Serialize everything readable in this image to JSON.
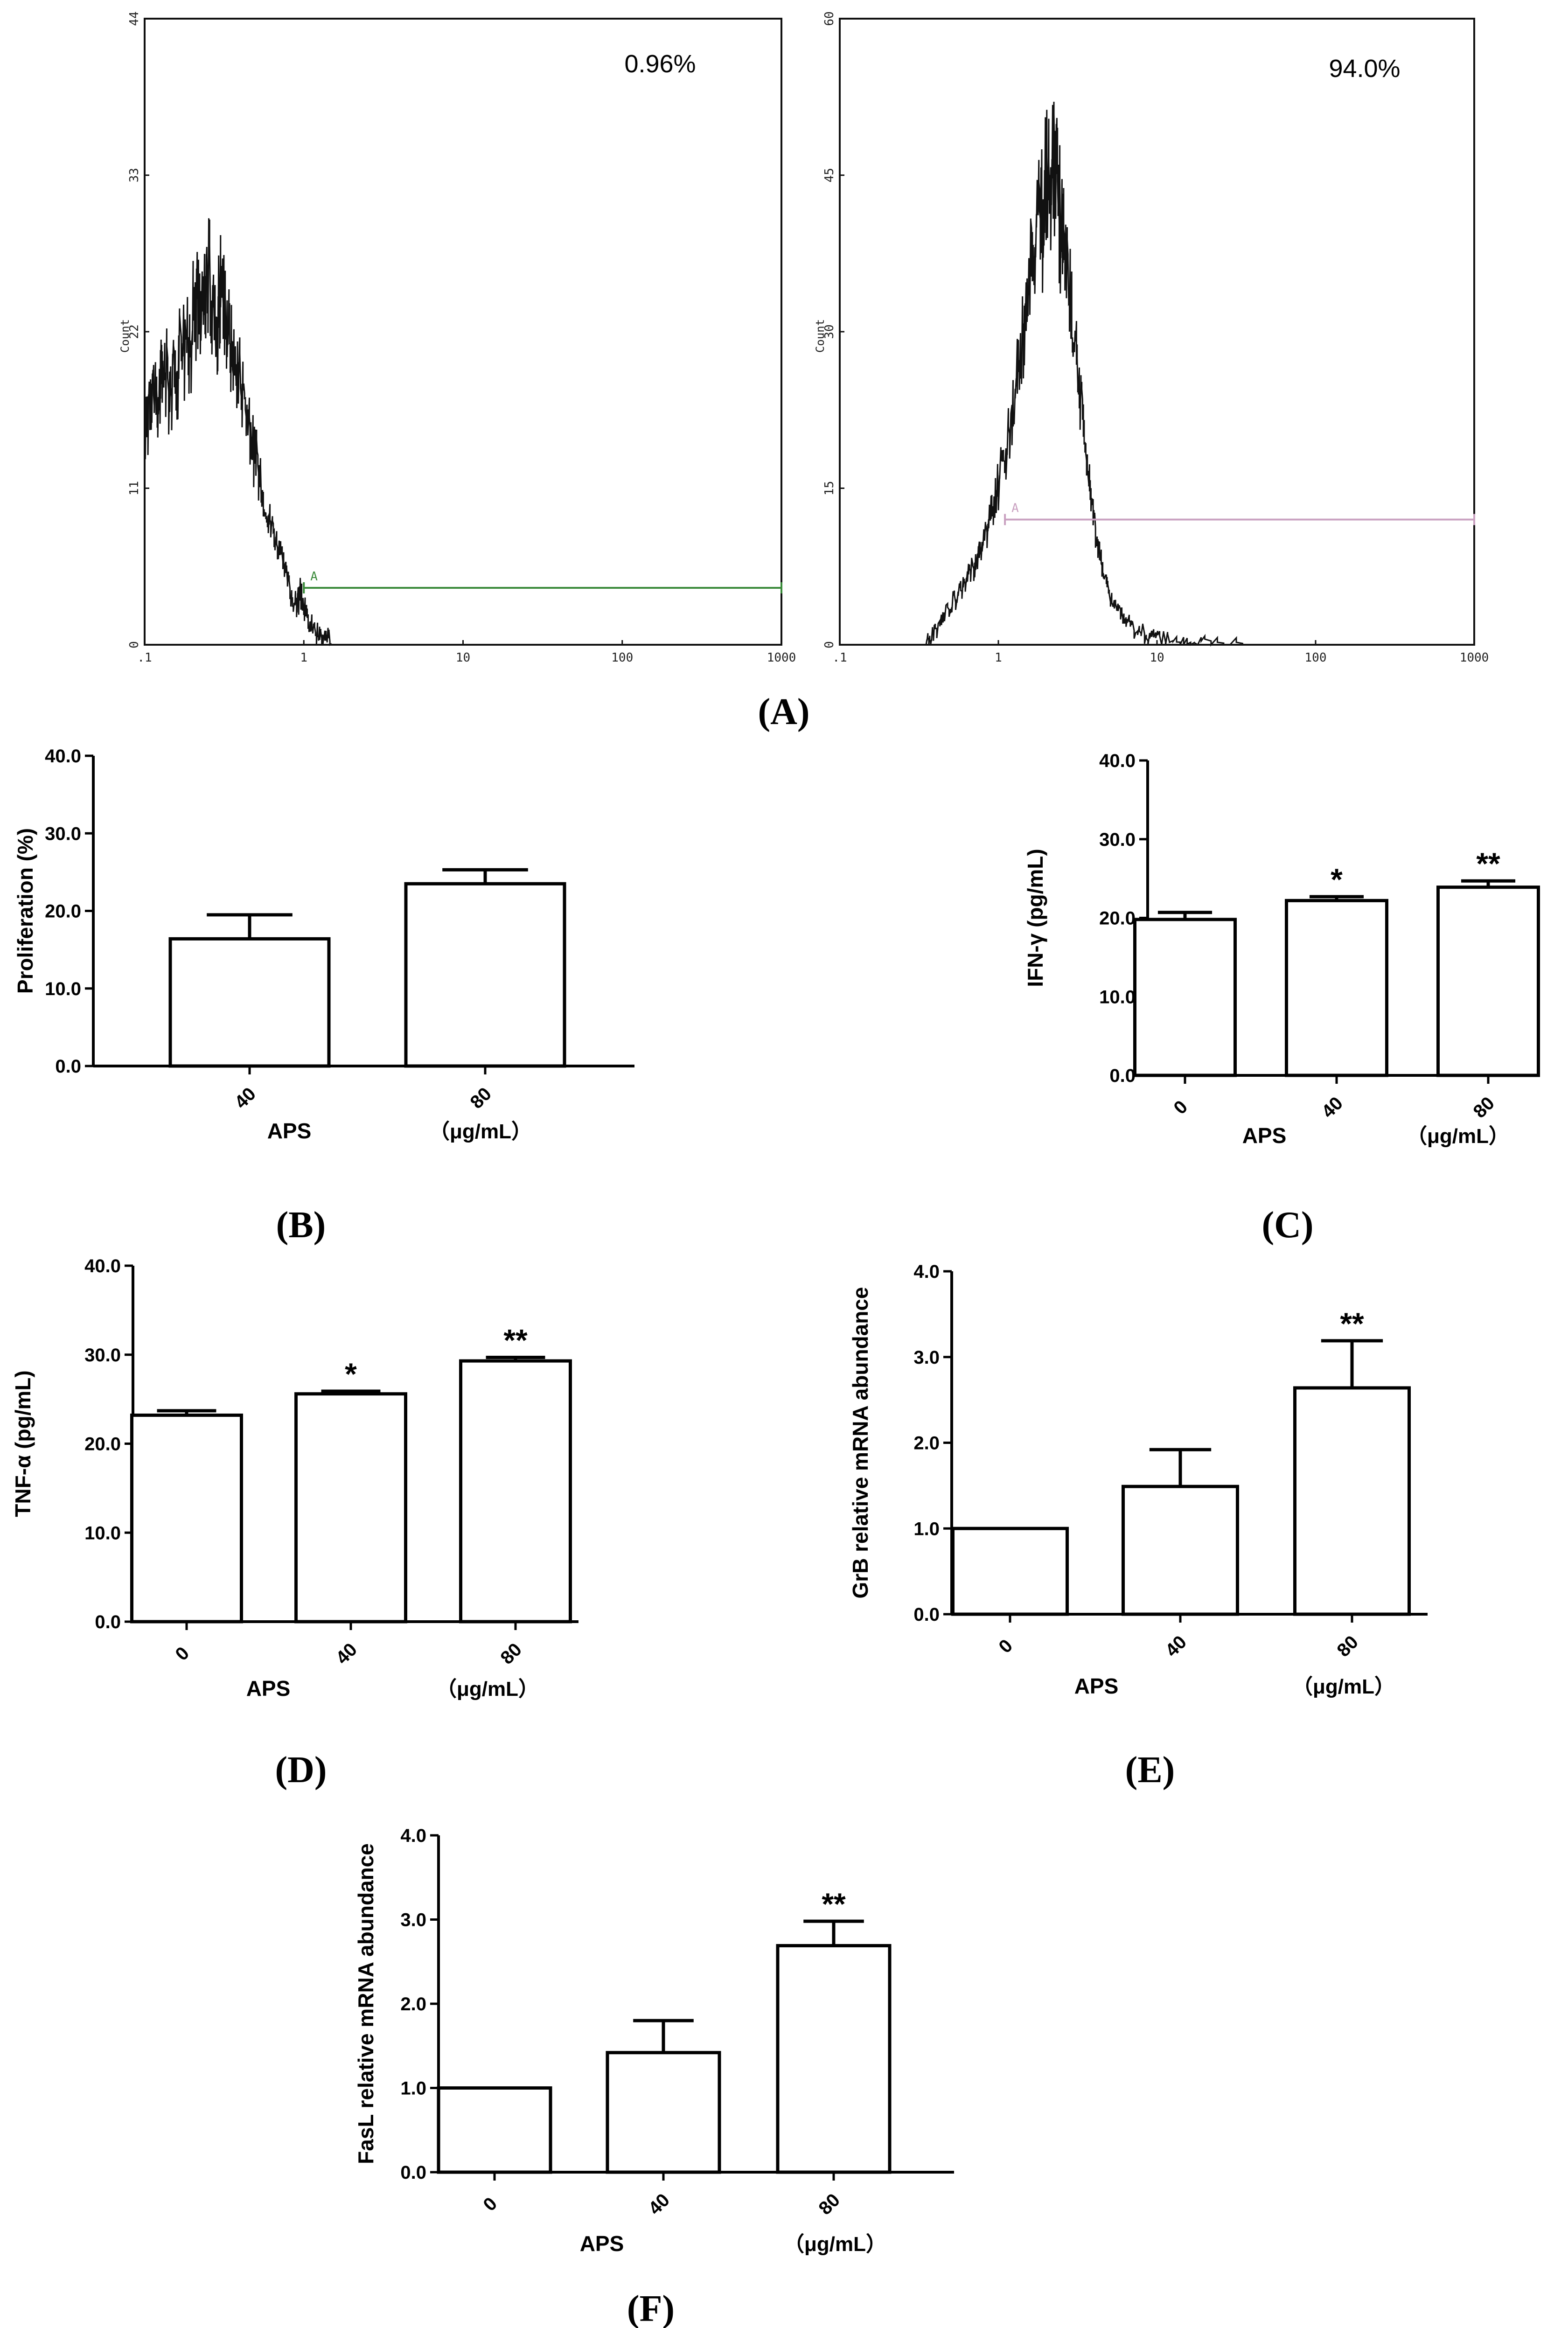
{
  "chart_data": [
    {
      "panel": "(A)",
      "type": "histogram",
      "subplots": [
        {
          "percent_label": "0.96%",
          "ylabel": "Count",
          "yticks": [
            "0",
            "11",
            "22",
            "33",
            "44"
          ],
          "ylim": [
            0,
            44
          ],
          "xticks": [
            ".1",
            "1",
            "10",
            "100",
            "1000"
          ],
          "xscale": "log",
          "xlim": [
            0.1,
            1000
          ],
          "gate": {
            "label": "A",
            "from": 1.0,
            "to": 1000,
            "level": 4,
            "color": "#3a8a3a"
          },
          "curve": [
            [
              0.1,
              15
            ],
            [
              0.11,
              20
            ],
            [
              0.12,
              17
            ],
            [
              0.13,
              21
            ],
            [
              0.15,
              19
            ],
            [
              0.17,
              23
            ],
            [
              0.19,
              22
            ],
            [
              0.21,
              26
            ],
            [
              0.23,
              24
            ],
            [
              0.25,
              28
            ],
            [
              0.28,
              23
            ],
            [
              0.3,
              27
            ],
            [
              0.33,
              24
            ],
            [
              0.36,
              21
            ],
            [
              0.4,
              20
            ],
            [
              0.45,
              16
            ],
            [
              0.5,
              14
            ],
            [
              0.55,
              11
            ],
            [
              0.62,
              9
            ],
            [
              0.7,
              7
            ],
            [
              0.78,
              5
            ],
            [
              0.88,
              3
            ],
            [
              0.95,
              4
            ],
            [
              1.05,
              2
            ],
            [
              1.2,
              1
            ],
            [
              1.4,
              0.5
            ],
            [
              1.6,
              0
            ]
          ]
        },
        {
          "percent_label": "94.0%",
          "ylabel": "Count",
          "yticks": [
            "0",
            "15",
            "30",
            "45",
            "60"
          ],
          "ylim": [
            0,
            60
          ],
          "xticks": [
            ".1",
            "1",
            "10",
            "100",
            "1000"
          ],
          "xscale": "log",
          "xlim": [
            0.1,
            1000
          ],
          "gate": {
            "label": "A",
            "from": 1.1,
            "to": 1000,
            "level": 12,
            "color": "#c9a0c0"
          },
          "curve": [
            [
              0.35,
              0
            ],
            [
              0.4,
              2
            ],
            [
              0.5,
              4
            ],
            [
              0.6,
              6
            ],
            [
              0.7,
              8
            ],
            [
              0.8,
              10
            ],
            [
              0.9,
              13
            ],
            [
              1.0,
              16
            ],
            [
              1.2,
              22
            ],
            [
              1.4,
              30
            ],
            [
              1.6,
              38
            ],
            [
              1.8,
              43
            ],
            [
              2.0,
              46
            ],
            [
              2.2,
              50
            ],
            [
              2.4,
              44
            ],
            [
              2.6,
              40
            ],
            [
              2.9,
              33
            ],
            [
              3.2,
              26
            ],
            [
              3.6,
              18
            ],
            [
              4.0,
              12
            ],
            [
              4.5,
              8
            ],
            [
              5.0,
              5
            ],
            [
              6.0,
              3
            ],
            [
              7.0,
              2
            ],
            [
              9.0,
              1
            ],
            [
              12,
              0.5
            ],
            [
              20,
              0.2
            ],
            [
              50,
              0
            ]
          ]
        }
      ]
    },
    {
      "panel": "(B)",
      "type": "bar",
      "categories": [
        "40",
        "80"
      ],
      "values": [
        16.4,
        23.5
      ],
      "errors": [
        3.1,
        1.8
      ],
      "significance": [
        "",
        ""
      ],
      "ylabel": "Proliferation (%)",
      "xlabel": "APS",
      "unit": "（μg/mL）",
      "yticks": [
        "0.0",
        "10.0",
        "20.0",
        "30.0",
        "40.0"
      ],
      "ylim": [
        0,
        40
      ]
    },
    {
      "panel": "(C)",
      "type": "bar",
      "categories": [
        "0",
        "40",
        "80"
      ],
      "values": [
        19.8,
        22.2,
        23.9
      ],
      "errors": [
        0.9,
        0.5,
        0.8
      ],
      "significance": [
        "",
        "*",
        "**"
      ],
      "ylabel": "IFN-γ (pg/mL)",
      "xlabel": "APS",
      "unit": "（μg/mL）",
      "yticks": [
        "0.0",
        "10.0",
        "20.0",
        "30.0",
        "40.0"
      ],
      "ylim": [
        0,
        40
      ]
    },
    {
      "panel": "(D)",
      "type": "bar",
      "categories": [
        "0",
        "40",
        "80"
      ],
      "values": [
        23.2,
        25.6,
        29.3
      ],
      "errors": [
        0.5,
        0.3,
        0.4
      ],
      "significance": [
        "",
        "*",
        "**"
      ],
      "ylabel": "TNF-α (pg/mL)",
      "xlabel": "APS",
      "unit": "（μg/mL）",
      "yticks": [
        "0.0",
        "10.0",
        "20.0",
        "30.0",
        "40.0"
      ],
      "ylim": [
        0,
        40
      ]
    },
    {
      "panel": "(E)",
      "type": "bar",
      "categories": [
        "0",
        "40",
        "80"
      ],
      "values": [
        1.0,
        1.49,
        2.64
      ],
      "errors": [
        0,
        0.43,
        0.55
      ],
      "significance": [
        "",
        "",
        "**"
      ],
      "ylabel": "GrB relative mRNA abundance",
      "xlabel": "APS",
      "unit": "（μg/mL）",
      "yticks": [
        "0.0",
        "1.0",
        "2.0",
        "3.0",
        "4.0"
      ],
      "ylim": [
        0,
        4
      ]
    },
    {
      "panel": "(F)",
      "type": "bar",
      "categories": [
        "0",
        "40",
        "80"
      ],
      "values": [
        1.0,
        1.42,
        2.69
      ],
      "errors": [
        0,
        0.38,
        0.29
      ],
      "significance": [
        "",
        "",
        "**"
      ],
      "ylabel": "FasL relative mRNA abundance",
      "xlabel": "APS",
      "unit": "（μg/mL）",
      "yticks": [
        "0.0",
        "1.0",
        "2.0",
        "3.0",
        "4.0"
      ],
      "ylim": [
        0,
        4
      ]
    }
  ]
}
